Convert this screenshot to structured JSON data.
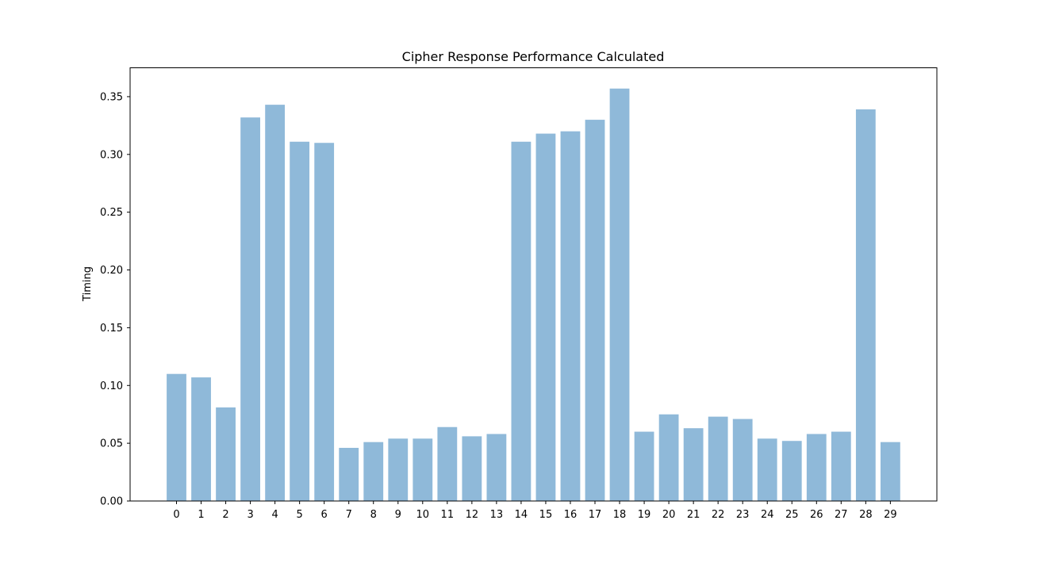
{
  "chart_data": {
    "type": "bar",
    "title": "Cipher Response Performance Calculated",
    "xlabel": "",
    "ylabel": "Timing",
    "categories": [
      "0",
      "1",
      "2",
      "3",
      "4",
      "5",
      "6",
      "7",
      "8",
      "9",
      "10",
      "11",
      "12",
      "13",
      "14",
      "15",
      "16",
      "17",
      "18",
      "19",
      "20",
      "21",
      "22",
      "23",
      "24",
      "25",
      "26",
      "27",
      "28",
      "29"
    ],
    "values": [
      0.11,
      0.107,
      0.081,
      0.332,
      0.343,
      0.311,
      0.31,
      0.046,
      0.051,
      0.054,
      0.054,
      0.064,
      0.056,
      0.058,
      0.311,
      0.318,
      0.32,
      0.33,
      0.357,
      0.06,
      0.075,
      0.063,
      0.073,
      0.071,
      0.054,
      0.052,
      0.058,
      0.06,
      0.339,
      0.051
    ],
    "ylim": [
      0,
      0.375
    ],
    "yticks": [
      "0.00",
      "0.05",
      "0.10",
      "0.15",
      "0.20",
      "0.25",
      "0.30",
      "0.35"
    ],
    "bar_color": "#8fb9d9",
    "grid": false,
    "legend": "none"
  }
}
